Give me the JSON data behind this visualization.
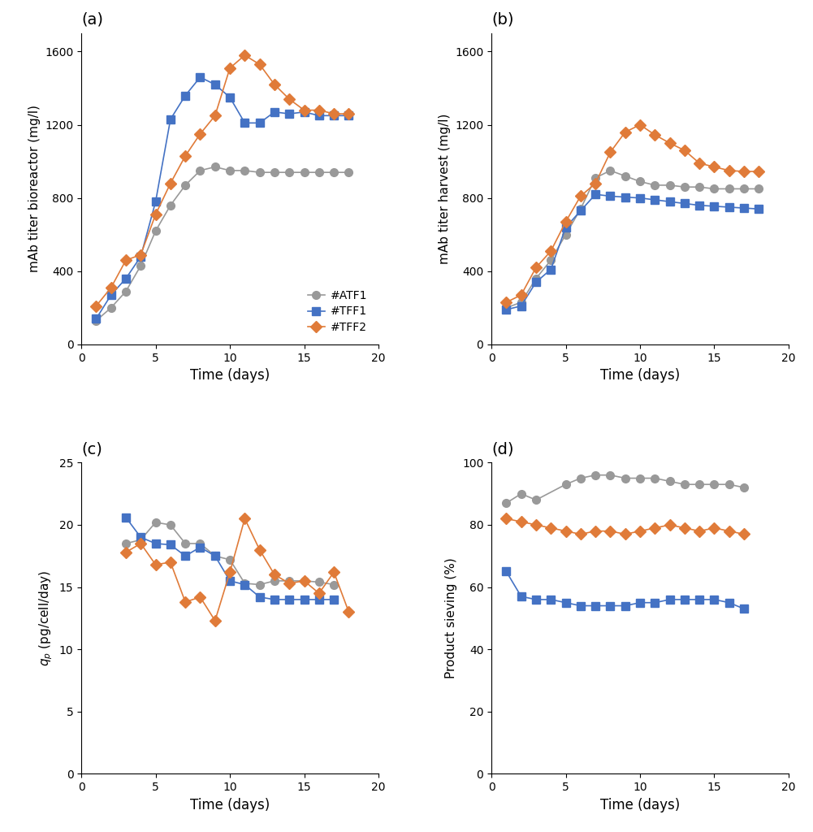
{
  "panel_a": {
    "title": "(a)",
    "ylabel": "mAb titer bioreactor (mg/l)",
    "xlabel": "Time (days)",
    "xlim": [
      0,
      20
    ],
    "ylim": [
      0,
      1700
    ],
    "yticks": [
      0,
      400,
      800,
      1200,
      1600
    ],
    "xticks": [
      0,
      5,
      10,
      15,
      20
    ],
    "ATF1": {
      "x": [
        1,
        2,
        3,
        4,
        5,
        6,
        7,
        8,
        9,
        10,
        11,
        12,
        13,
        14,
        15,
        16,
        17,
        18
      ],
      "y": [
        130,
        200,
        290,
        430,
        620,
        760,
        870,
        950,
        970,
        950,
        950,
        940,
        940,
        940,
        940,
        940,
        940,
        940
      ]
    },
    "TFF1": {
      "x": [
        1,
        2,
        3,
        4,
        5,
        6,
        7,
        8,
        9,
        10,
        11,
        12,
        13,
        14,
        15,
        16,
        17,
        18
      ],
      "y": [
        140,
        270,
        360,
        480,
        780,
        1230,
        1360,
        1460,
        1420,
        1350,
        1210,
        1210,
        1270,
        1260,
        1270,
        1250,
        1250,
        1250
      ]
    },
    "TFF2": {
      "x": [
        1,
        2,
        3,
        4,
        5,
        6,
        7,
        8,
        9,
        10,
        11,
        12,
        13,
        14,
        15,
        16,
        17,
        18
      ],
      "y": [
        210,
        310,
        460,
        490,
        710,
        880,
        1030,
        1150,
        1250,
        1510,
        1580,
        1530,
        1420,
        1340,
        1280,
        1280,
        1260,
        1260
      ]
    }
  },
  "panel_b": {
    "title": "(b)",
    "ylabel": "mAb titer harvest (mg/l)",
    "xlabel": "Time (days)",
    "xlim": [
      0,
      20
    ],
    "ylim": [
      0,
      1700
    ],
    "yticks": [
      0,
      400,
      800,
      1200,
      1600
    ],
    "xticks": [
      0,
      5,
      10,
      15,
      20
    ],
    "ATF1": {
      "x": [
        1,
        2,
        3,
        4,
        5,
        6,
        7,
        8,
        9,
        10,
        11,
        12,
        13,
        14,
        15,
        16,
        17,
        18
      ],
      "y": [
        200,
        230,
        360,
        460,
        600,
        740,
        910,
        950,
        920,
        890,
        870,
        870,
        860,
        860,
        850,
        850,
        850,
        850
      ]
    },
    "TFF1": {
      "x": [
        1,
        2,
        3,
        4,
        5,
        6,
        7,
        8,
        9,
        10,
        11,
        12,
        13,
        14,
        15,
        16,
        17,
        18
      ],
      "y": [
        190,
        210,
        340,
        410,
        640,
        730,
        820,
        810,
        805,
        800,
        790,
        780,
        770,
        760,
        755,
        750,
        745,
        740
      ]
    },
    "TFF2": {
      "x": [
        1,
        2,
        3,
        4,
        5,
        6,
        7,
        8,
        9,
        10,
        11,
        12,
        13,
        14,
        15,
        16,
        17,
        18
      ],
      "y": [
        230,
        270,
        420,
        510,
        670,
        810,
        880,
        1050,
        1160,
        1200,
        1145,
        1100,
        1060,
        990,
        970,
        950,
        945,
        945
      ]
    }
  },
  "panel_c": {
    "title": "(c)",
    "ylabel": "q_p (pg/cell/day)",
    "xlabel": "Time (days)",
    "xlim": [
      0,
      20
    ],
    "ylim": [
      0,
      25
    ],
    "yticks": [
      0,
      5,
      10,
      15,
      20,
      25
    ],
    "xticks": [
      0,
      5,
      10,
      15,
      20
    ],
    "ATF1": {
      "x": [
        3,
        4,
        5,
        6,
        7,
        8,
        9,
        10,
        11,
        12,
        13,
        14,
        15,
        16,
        17
      ],
      "y": [
        18.5,
        18.8,
        20.2,
        20.0,
        18.5,
        18.5,
        17.5,
        17.2,
        15.3,
        15.2,
        15.5,
        15.5,
        15.5,
        15.4,
        15.2
      ]
    },
    "TFF1": {
      "x": [
        3,
        4,
        5,
        6,
        7,
        8,
        9,
        10,
        11,
        12,
        13,
        14,
        15,
        16,
        17
      ],
      "y": [
        20.6,
        19.0,
        18.5,
        18.4,
        17.5,
        18.2,
        17.5,
        15.5,
        15.2,
        14.2,
        14.0,
        14.0,
        14.0,
        14.0,
        14.0
      ]
    },
    "TFF2": {
      "x": [
        3,
        4,
        5,
        6,
        7,
        8,
        9,
        10,
        11,
        12,
        13,
        14,
        15,
        16,
        17,
        18
      ],
      "y": [
        17.8,
        18.5,
        16.8,
        17.0,
        13.8,
        14.2,
        12.3,
        16.2,
        20.5,
        18.0,
        16.0,
        15.3,
        15.5,
        14.5,
        16.2,
        13.0
      ]
    }
  },
  "panel_d": {
    "title": "(d)",
    "ylabel": "Product sieving (%)",
    "xlabel": "Time (days)",
    "xlim": [
      0,
      20
    ],
    "ylim": [
      0,
      100
    ],
    "yticks": [
      0,
      20,
      40,
      60,
      80,
      100
    ],
    "xticks": [
      0,
      5,
      10,
      15,
      20
    ],
    "ATF1": {
      "x": [
        1,
        2,
        3,
        5,
        6,
        7,
        8,
        9,
        10,
        11,
        12,
        13,
        14,
        15,
        16,
        17
      ],
      "y": [
        87,
        90,
        88,
        93,
        95,
        96,
        96,
        95,
        95,
        95,
        94,
        93,
        93,
        93,
        93,
        92
      ]
    },
    "TFF1": {
      "x": [
        1,
        2,
        3,
        4,
        5,
        6,
        7,
        8,
        9,
        10,
        11,
        12,
        13,
        14,
        15,
        16,
        17
      ],
      "y": [
        65,
        57,
        56,
        56,
        55,
        54,
        54,
        54,
        54,
        55,
        55,
        56,
        56,
        56,
        56,
        55,
        53
      ]
    },
    "TFF2": {
      "x": [
        1,
        2,
        3,
        4,
        5,
        6,
        7,
        8,
        9,
        10,
        11,
        12,
        13,
        14,
        15,
        16,
        17
      ],
      "y": [
        82,
        81,
        80,
        79,
        78,
        77,
        78,
        78,
        77,
        78,
        79,
        80,
        79,
        78,
        79,
        78,
        77
      ]
    }
  },
  "colors": {
    "ATF1": "#999999",
    "TFF1": "#4472C4",
    "TFF2": "#E07B39"
  },
  "legend_labels": [
    "#ATF1",
    "#TFF1",
    "#TFF2"
  ]
}
